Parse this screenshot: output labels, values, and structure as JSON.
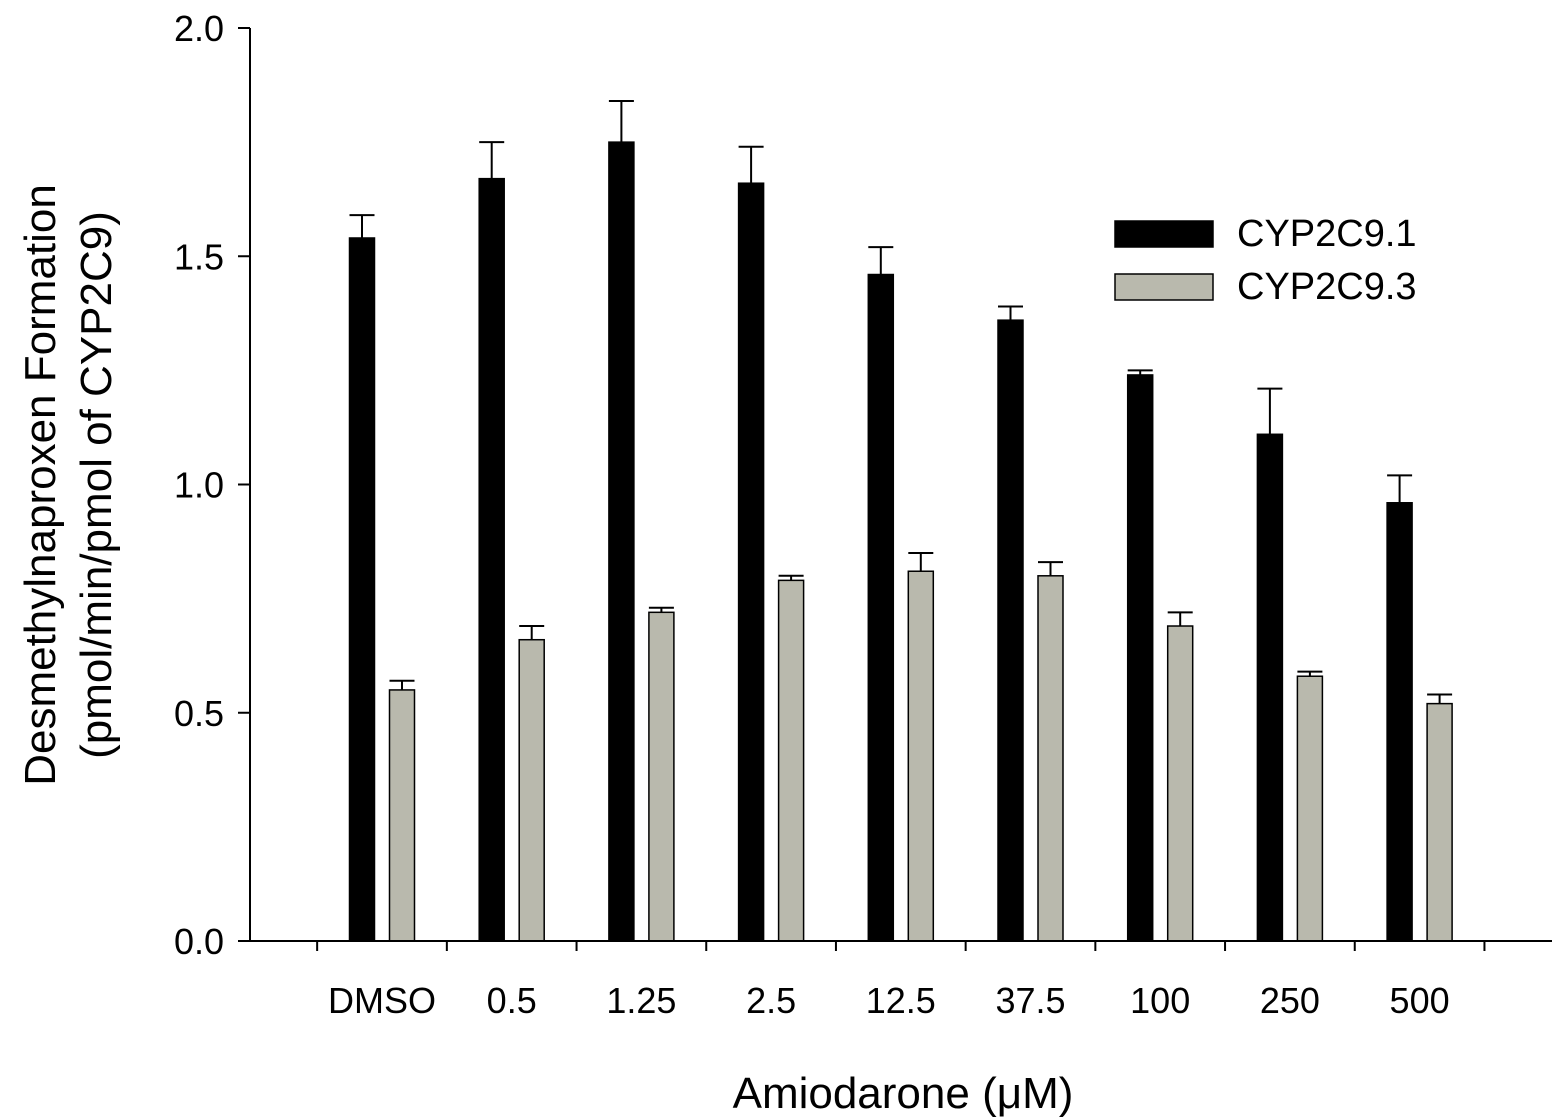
{
  "chart_data": {
    "type": "bar",
    "title": "",
    "xlabel": "Amiodarone (μM)",
    "ylabel_line1": "Desmethylnaproxen Formation",
    "ylabel_line2": "(pmol/min/pmol of CYP2C9)",
    "categories": [
      "DMSO",
      "0.5",
      "1.25",
      "2.5",
      "12.5",
      "37.5",
      "100",
      "250",
      "500"
    ],
    "ylim": [
      0,
      2.0
    ],
    "yticks": [
      0.0,
      0.5,
      1.0,
      1.5,
      2.0
    ],
    "ytick_labels": [
      "0.0",
      "0.5",
      "1.0",
      "1.5",
      "2.0"
    ],
    "grid": false,
    "legend_position": "top-right",
    "series": [
      {
        "name": "CYP2C9.1",
        "color": "#000000",
        "values": [
          1.54,
          1.67,
          1.75,
          1.66,
          1.46,
          1.36,
          1.24,
          1.11,
          0.96
        ],
        "errors": [
          0.05,
          0.08,
          0.09,
          0.08,
          0.06,
          0.03,
          0.01,
          0.1,
          0.06
        ]
      },
      {
        "name": "CYP2C9.3",
        "color": "#b9b9ad",
        "values": [
          0.55,
          0.66,
          0.72,
          0.79,
          0.81,
          0.8,
          0.69,
          0.58,
          0.52
        ],
        "errors": [
          0.02,
          0.03,
          0.01,
          0.01,
          0.04,
          0.03,
          0.03,
          0.01,
          0.02
        ]
      }
    ]
  }
}
